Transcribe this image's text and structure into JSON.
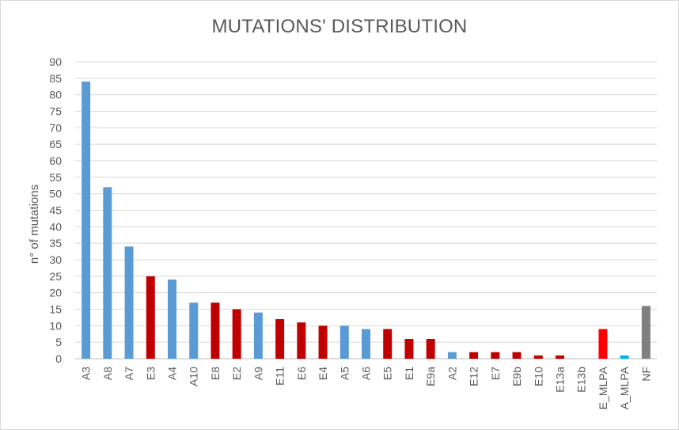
{
  "chart_data": {
    "type": "bar",
    "title": "MUTATIONS' DISTRIBUTION",
    "xlabel": "",
    "ylabel": "n° of mutations",
    "ylim": [
      0,
      90
    ],
    "yticks": [
      0,
      5,
      10,
      15,
      20,
      25,
      30,
      35,
      40,
      45,
      50,
      55,
      60,
      65,
      70,
      75,
      80,
      85,
      90
    ],
    "grid": true,
    "legend": "none",
    "categories": [
      "A3",
      "A8",
      "A7",
      "E3",
      "A4",
      "A10",
      "E8",
      "E2",
      "A9",
      "E11",
      "E6",
      "E4",
      "A5",
      "A6",
      "E5",
      "E1",
      "E9a",
      "A2",
      "E12",
      "E7",
      "E9b",
      "E10",
      "E13a",
      "E13b",
      "E_MLPA",
      "A_MLPA",
      "NF"
    ],
    "values": [
      84,
      52,
      34,
      25,
      24,
      17,
      17,
      15,
      14,
      12,
      11,
      10,
      10,
      9,
      9,
      6,
      6,
      2,
      2,
      2,
      2,
      1,
      1,
      0,
      9,
      1,
      16
    ],
    "colors": [
      "#5b9bd5",
      "#5b9bd5",
      "#5b9bd5",
      "#c00000",
      "#5b9bd5",
      "#5b9bd5",
      "#c00000",
      "#c00000",
      "#5b9bd5",
      "#c00000",
      "#c00000",
      "#c00000",
      "#5b9bd5",
      "#5b9bd5",
      "#c00000",
      "#c00000",
      "#c00000",
      "#5b9bd5",
      "#c00000",
      "#c00000",
      "#c00000",
      "#c00000",
      "#c00000",
      "#c00000",
      "#ff0000",
      "#00b0f0",
      "#808080"
    ]
  }
}
